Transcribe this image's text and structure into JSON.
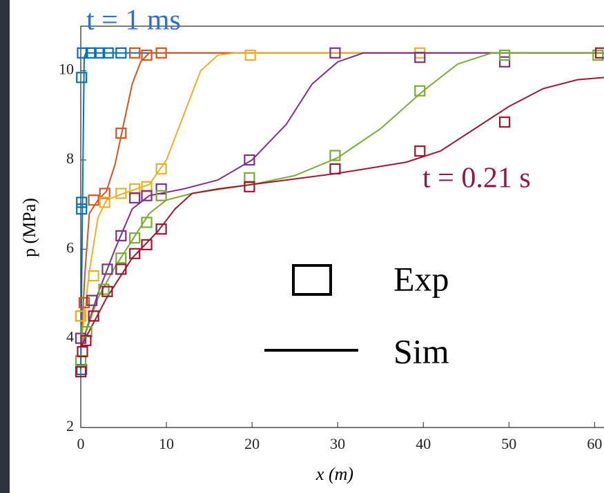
{
  "chart_data": {
    "type": "line",
    "xlabel": "x (m)",
    "ylabel": "p (MPa)",
    "xlim": [
      0,
      61.1
    ],
    "ylim": [
      2,
      11
    ],
    "xticks": [
      0,
      10,
      20,
      30,
      40,
      50,
      60
    ],
    "yticks": [
      2,
      4,
      6,
      8,
      10
    ],
    "grid": false,
    "annotations": [
      {
        "text": "t = 1 ms",
        "color": "#2a6fd6"
      },
      {
        "text": "t = 0.21 s",
        "color": "#8e1a4a"
      }
    ],
    "legend": {
      "markers": "Exp",
      "lines": "Sim"
    },
    "series": [
      {
        "color": "#0072BD",
        "exp_x": [
          0.2,
          0.1,
          0.1,
          0.1,
          0.1,
          1.2,
          2.2,
          3.2,
          4.7
        ],
        "exp_y": [
          10.4,
          9.85,
          7.05,
          6.9,
          3.3,
          10.4,
          10.4,
          10.4,
          10.4
        ],
        "sim_x": [
          0,
          0.2,
          0.4,
          0.6,
          61.1
        ],
        "sim_y": [
          3.3,
          7,
          10.3,
          10.4,
          10.4
        ]
      },
      {
        "color": "#D95319",
        "exp_x": [
          0,
          0.4,
          1.5,
          2.8,
          4.7,
          6.3,
          7.7,
          9.4
        ],
        "exp_y": [
          4.5,
          4.8,
          7.1,
          7.25,
          8.6,
          10.4,
          10.35,
          10.4
        ],
        "sim_x": [
          0,
          0.5,
          1,
          2,
          3,
          4,
          5,
          6,
          7,
          8,
          61.1
        ],
        "sim_y": [
          3.8,
          5.5,
          6.8,
          7.1,
          7.3,
          7.9,
          8.8,
          9.7,
          10.2,
          10.4,
          10.4
        ]
      },
      {
        "color": "#EDB120",
        "exp_x": [
          0,
          1.5,
          2.8,
          4.7,
          6.3,
          7.7,
          9.4,
          19.8,
          39.6
        ],
        "exp_y": [
          4.5,
          5.4,
          7.05,
          7.25,
          7.35,
          7.4,
          7.8,
          10.35,
          10.4
        ],
        "sim_x": [
          0,
          1,
          2,
          3,
          5,
          8,
          10,
          12,
          14,
          16,
          18,
          61.1
        ],
        "sim_y": [
          3.8,
          5.5,
          6.7,
          7.1,
          7.25,
          7.45,
          8,
          9,
          10,
          10.35,
          10.4,
          10.4
        ]
      },
      {
        "color": "#7E2F8E",
        "exp_x": [
          0,
          1.3,
          3.1,
          4.7,
          6.3,
          7.7,
          9.4,
          19.7,
          29.7,
          39.6,
          49.5
        ],
        "exp_y": [
          4.0,
          4.85,
          5.55,
          6.3,
          7.15,
          7.2,
          7.35,
          8.0,
          10.4,
          10.3,
          10.2
        ],
        "sim_x": [
          0,
          2,
          4,
          6,
          8,
          12,
          16,
          20,
          24,
          27,
          30,
          33,
          61.1
        ],
        "sim_y": [
          3.8,
          5,
          6,
          6.9,
          7.2,
          7.35,
          7.55,
          8,
          8.8,
          9.7,
          10.2,
          10.4,
          10.4
        ]
      },
      {
        "color": "#77AC30",
        "exp_x": [
          0,
          0.7,
          2.7,
          4.7,
          6.3,
          7.7,
          9.4,
          19.7,
          29.7,
          39.6,
          49.5,
          60.4
        ],
        "exp_y": [
          3.5,
          4.15,
          5.1,
          5.8,
          6.25,
          6.6,
          7.2,
          7.6,
          8.1,
          9.55,
          10.35,
          10.35
        ],
        "sim_x": [
          0,
          2,
          4,
          6,
          8,
          10,
          13,
          20,
          25,
          30,
          35,
          40,
          44,
          48,
          61.1
        ],
        "sim_y": [
          3.8,
          4.9,
          5.6,
          6.2,
          6.8,
          7.1,
          7.25,
          7.45,
          7.65,
          8.05,
          8.7,
          9.55,
          10.15,
          10.4,
          10.4
        ]
      },
      {
        "color": "#A2142F",
        "exp_x": [
          0,
          0.2,
          0.6,
          1.5,
          3.1,
          4.7,
          6.3,
          7.7,
          9.4,
          19.7,
          29.7,
          39.6,
          49.5,
          60.7
        ],
        "exp_y": [
          3.25,
          3.7,
          3.95,
          4.5,
          5.05,
          5.55,
          5.9,
          6.1,
          6.45,
          7.4,
          7.8,
          8.2,
          8.85,
          10.4
        ],
        "sim_x": [
          0,
          3,
          6,
          9,
          11,
          13,
          16,
          20,
          30,
          38,
          42,
          46,
          50,
          54,
          58,
          61.1
        ],
        "sim_y": [
          3.8,
          4.9,
          5.8,
          6.4,
          6.9,
          7.25,
          7.35,
          7.45,
          7.7,
          7.95,
          8.2,
          8.7,
          9.2,
          9.6,
          9.8,
          9.85
        ]
      }
    ]
  }
}
